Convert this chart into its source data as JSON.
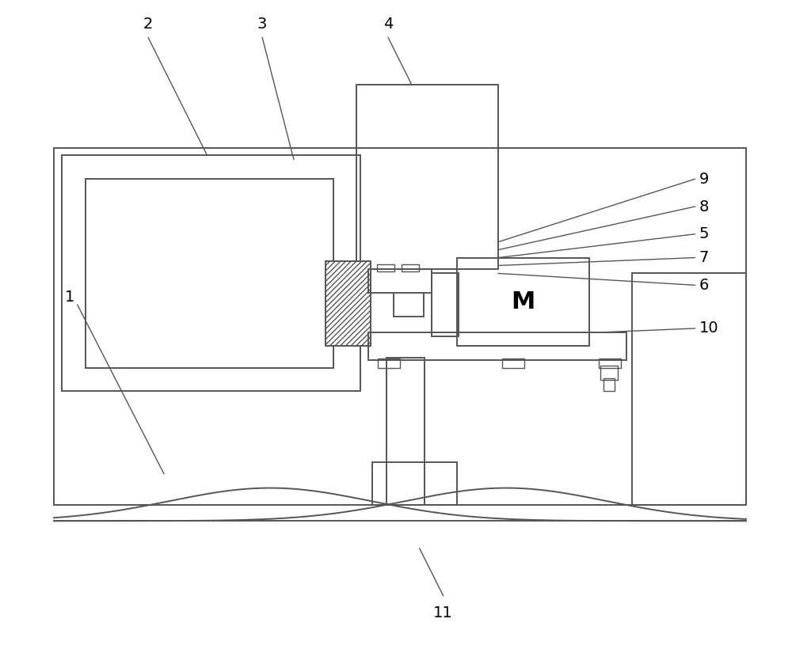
{
  "bg_color": "#ffffff",
  "lc": "#555555",
  "lw": 1.4,
  "tlw": 1.0,
  "figsize": [
    10.0,
    8.15
  ],
  "dpi": 100
}
